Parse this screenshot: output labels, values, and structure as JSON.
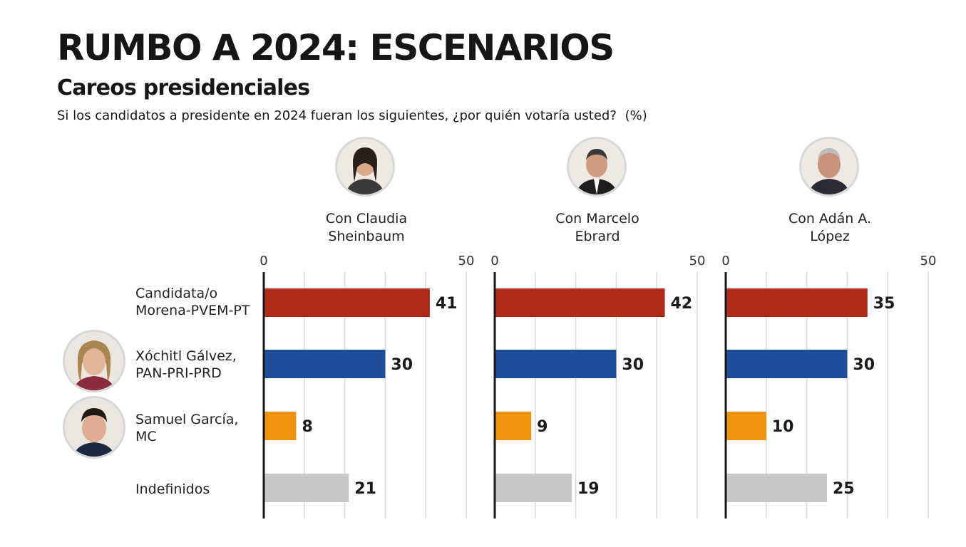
{
  "title": "RUMBO A 2024: ESCENARIOS",
  "subtitle": "Careos presidenciales",
  "question": "Si los candidatos a presidente en 2024 fueran los siguientes, ¿por quién votaría usted?",
  "unit": "(%)",
  "colors": {
    "morena": "#b02a1a",
    "pan_pri_prd": "#1f4e9c",
    "mc": "#f0930c",
    "indefinidos": "#c8c8c8",
    "grid": "#d9d9d9",
    "axis": "#1a1a1a"
  },
  "rows": [
    {
      "label_line1": "Candidata/o",
      "label_line2": "Morena-PVEM-PT",
      "avatar": null
    },
    {
      "label_line1": "Xóchitl Gálvez,",
      "label_line2": "PAN-PRI-PRD",
      "avatar": "xochitl-galvez-photo"
    },
    {
      "label_line1": "Samuel García,",
      "label_line2": "MC",
      "avatar": "samuel-garcia-photo"
    },
    {
      "label_line1": "Indefinidos",
      "label_line2": "",
      "avatar": null
    }
  ],
  "panels": [
    {
      "head_line1": "Con Claudia",
      "head_line2": "Sheinbaum",
      "avatar": "claudia-sheinbaum-photo"
    },
    {
      "head_line1": "Con Marcelo",
      "head_line2": "Ebrard",
      "avatar": "marcelo-ebrard-photo"
    },
    {
      "head_line1": "Con Adán A.",
      "head_line2": "López",
      "avatar": "adan-augusto-lopez-photo"
    }
  ],
  "chart_data": [
    {
      "type": "bar",
      "title": "Con Claudia Sheinbaum",
      "categories": [
        "Candidata/o Morena-PVEM-PT",
        "Xóchitl Gálvez, PAN-PRI-PRD",
        "Samuel García, MC",
        "Indefinidos"
      ],
      "values": [
        41,
        30,
        8,
        21
      ],
      "xlim": [
        0,
        50
      ],
      "ticks": [
        "0",
        "50"
      ],
      "grid": true
    },
    {
      "type": "bar",
      "title": "Con Marcelo Ebrard",
      "categories": [
        "Candidata/o Morena-PVEM-PT",
        "Xóchitl Gálvez, PAN-PRI-PRD",
        "Samuel García, MC",
        "Indefinidos"
      ],
      "values": [
        42,
        30,
        9,
        19
      ],
      "xlim": [
        0,
        50
      ],
      "ticks": [
        "0",
        "50"
      ],
      "grid": true
    },
    {
      "type": "bar",
      "title": "Con Adán A. López",
      "categories": [
        "Candidata/o Morena-PVEM-PT",
        "Xóchitl Gálvez, PAN-PRI-PRD",
        "Samuel García, MC",
        "Indefinidos"
      ],
      "values": [
        35,
        30,
        10,
        25
      ],
      "xlim": [
        0,
        50
      ],
      "ticks": [
        "0",
        "50"
      ],
      "grid": true
    }
  ]
}
